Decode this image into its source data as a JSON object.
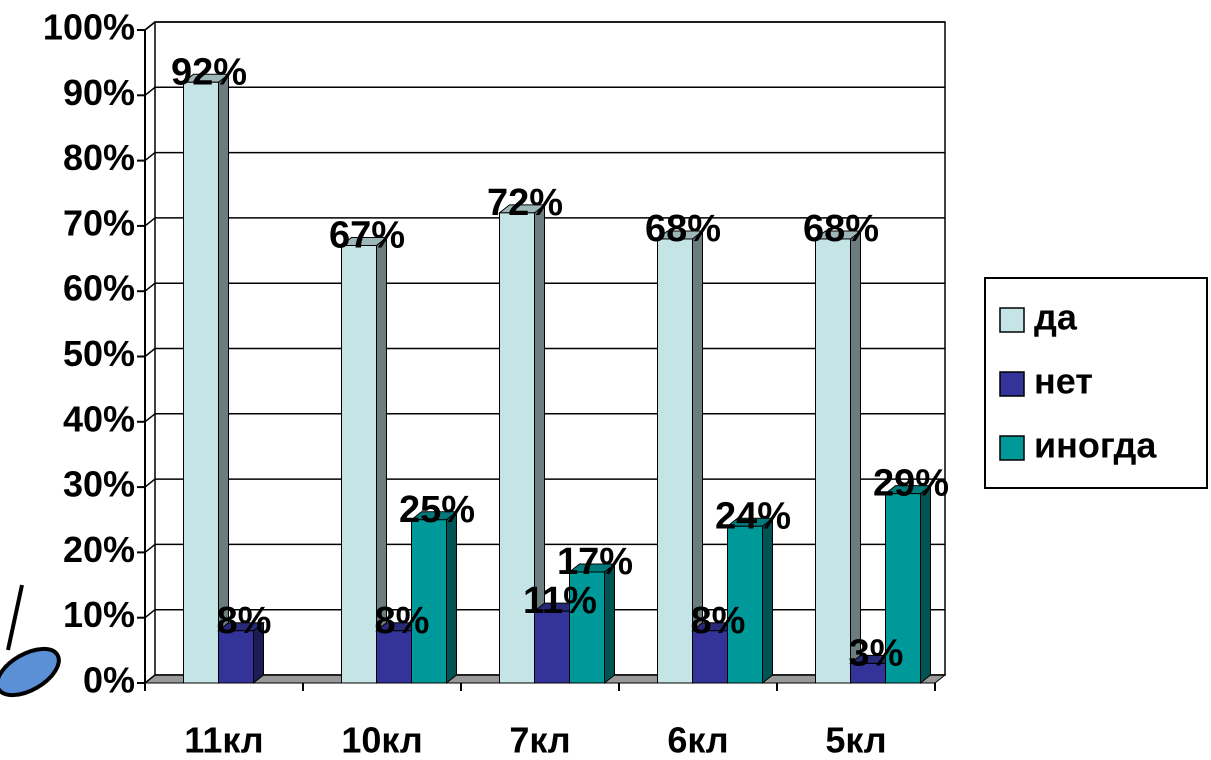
{
  "chart_data": {
    "type": "bar3d",
    "categories": [
      "11кл",
      "10кл",
      "7кл",
      "6кл",
      "5кл"
    ],
    "series": [
      {
        "name": "да",
        "color": "#c4e4e6",
        "values": [
          92,
          67,
          72,
          68,
          68
        ],
        "value_labels": [
          "92%",
          "67%",
          "72%",
          "68%",
          "68%"
        ]
      },
      {
        "name": "нет",
        "color": "#333399",
        "values": [
          8,
          8,
          11,
          8,
          3
        ],
        "value_labels": [
          "8%",
          "8%",
          "11%",
          "8%",
          "3%"
        ]
      },
      {
        "name": "иногда",
        "color": "#009999",
        "values": [
          null,
          25,
          17,
          24,
          29
        ],
        "value_labels": [
          null,
          "25%",
          "17%",
          "24%",
          "29%"
        ]
      }
    ],
    "ylim": [
      0,
      100
    ],
    "yticks": [
      {
        "value": 0,
        "label": "0%"
      },
      {
        "value": 10,
        "label": "10%"
      },
      {
        "value": 20,
        "label": "20%"
      },
      {
        "value": 30,
        "label": "30%"
      },
      {
        "value": 40,
        "label": "40%"
      },
      {
        "value": 50,
        "label": "50%"
      },
      {
        "value": 60,
        "label": "60%"
      },
      {
        "value": 70,
        "label": "70%"
      },
      {
        "value": 80,
        "label": "80%"
      },
      {
        "value": 90,
        "label": "90%"
      },
      {
        "value": 100,
        "label": "100%"
      }
    ],
    "grid": true,
    "legend": "right"
  }
}
